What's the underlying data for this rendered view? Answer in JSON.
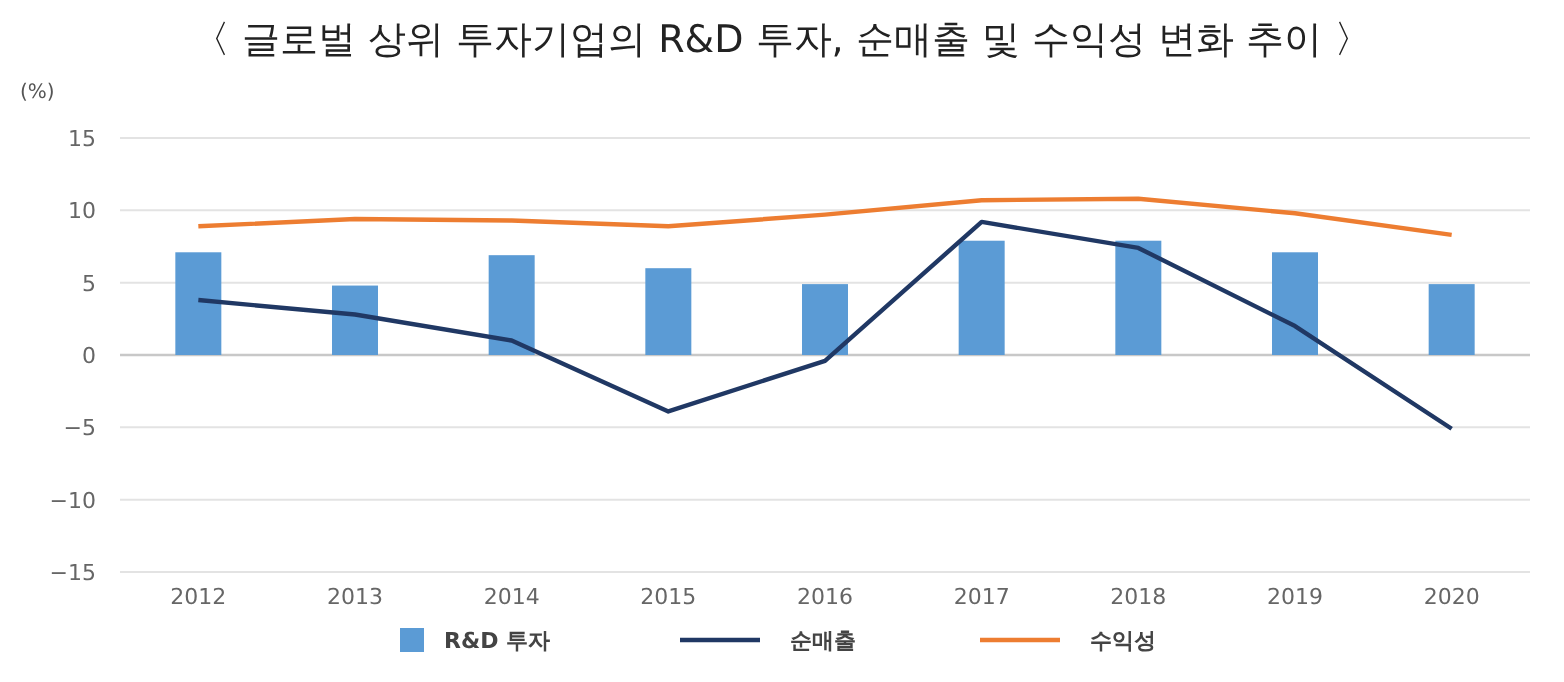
{
  "chart_data": {
    "type": "bar",
    "title": "〈 글로벌 상위 투자기업의 R&D 투자, 순매출 및 수익성 변화 추이 〉",
    "ylabel": "(%)",
    "categories": [
      "2012",
      "2013",
      "2014",
      "2015",
      "2016",
      "2017",
      "2018",
      "2019",
      "2020"
    ],
    "series": [
      {
        "name": "R&D 투자",
        "color": "#5b9bd5",
        "values": [
          7.1,
          4.8,
          6.9,
          6.0,
          4.9,
          7.9,
          7.9,
          7.1,
          4.9
        ]
      },
      {
        "name": "순매출",
        "type": "line",
        "color": "#203864",
        "values": [
          3.8,
          2.8,
          1.0,
          -3.9,
          -0.4,
          9.2,
          7.4,
          2.0,
          -5.1
        ]
      },
      {
        "name": "수익성",
        "type": "line",
        "color": "#ed7d31",
        "values": [
          8.9,
          9.4,
          9.3,
          8.9,
          9.7,
          10.7,
          10.8,
          9.8,
          8.3
        ]
      }
    ],
    "ylim": [
      -15,
      15
    ],
    "yticks": [
      -15,
      -10,
      -5,
      0,
      5,
      10,
      15
    ],
    "grid": "y",
    "legend": "bottom",
    "marker": "none",
    "line_style": "solid"
  }
}
